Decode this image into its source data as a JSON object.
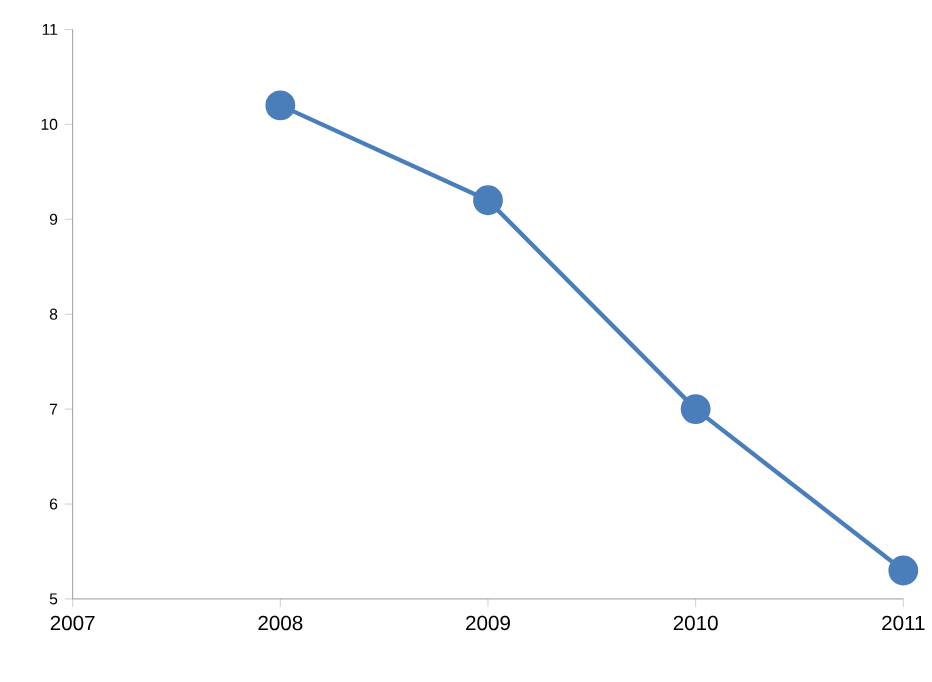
{
  "chart_data": {
    "type": "line",
    "x": [
      2008,
      2009,
      2010,
      2011
    ],
    "series": [
      {
        "color": "#4a7ebb",
        "values": [
          10.2,
          9.2,
          7.0,
          5.3
        ]
      }
    ],
    "xlim": [
      2007,
      2011
    ],
    "xticks": [
      2007,
      2008,
      2009,
      2010,
      2011
    ],
    "ylim": [
      5,
      11
    ],
    "yticks": [
      5,
      6,
      7,
      8,
      9,
      10,
      11
    ],
    "grid": false,
    "marker": "circle",
    "line_style": "solid"
  }
}
